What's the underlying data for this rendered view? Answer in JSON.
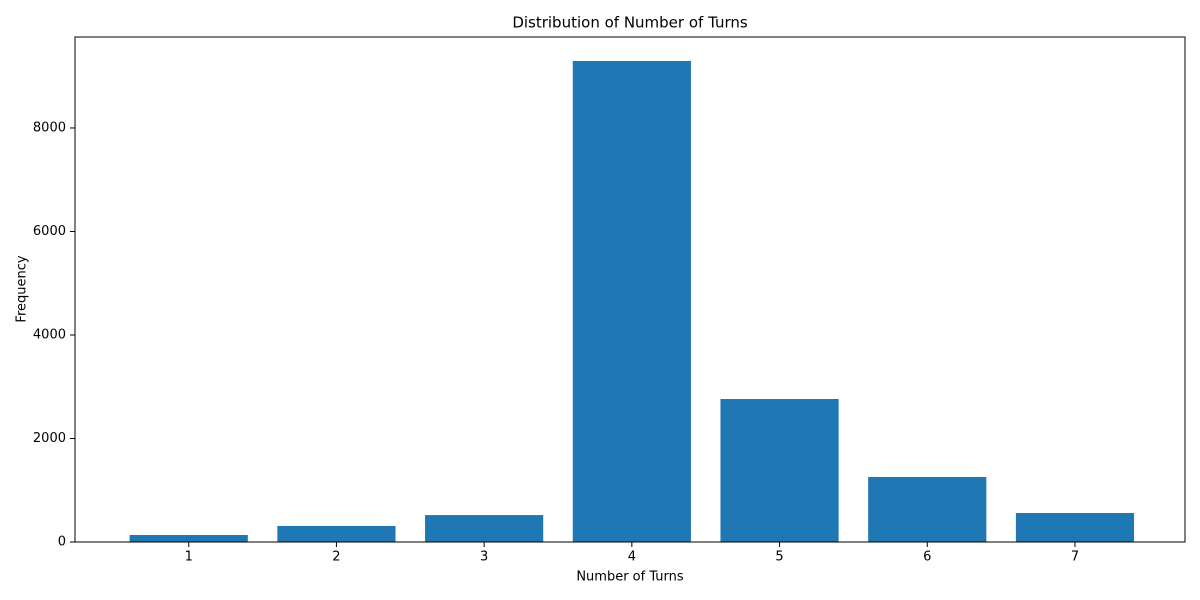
{
  "chart_data": {
    "type": "bar",
    "title": "Distribution of Number of Turns",
    "xlabel": "Number of Turns",
    "ylabel": "Frequency",
    "x": [
      1,
      2,
      3,
      4,
      5,
      6,
      7
    ],
    "values": [
      135,
      310,
      520,
      9295,
      2763,
      1256,
      560
    ],
    "color": "#1f77b4",
    "xlim": [
      0.23,
      7.745
    ],
    "xticks": [
      1,
      2,
      3,
      4,
      5,
      6,
      7
    ],
    "ylim": [
      0,
      9758
    ],
    "yticks": [
      0,
      2000,
      4000,
      6000,
      8000
    ],
    "grid": false
  }
}
